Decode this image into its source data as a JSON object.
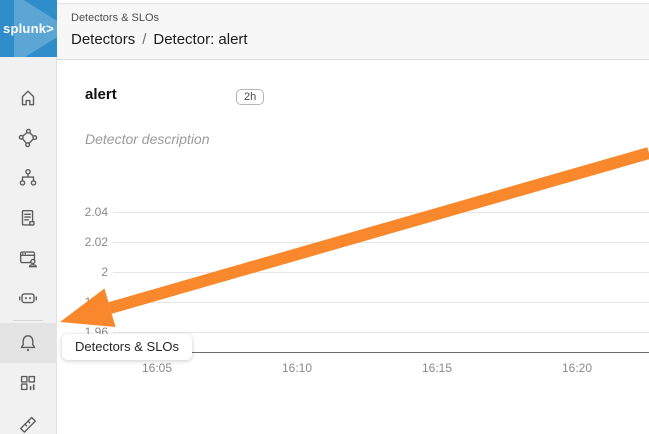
{
  "logo": {
    "text": "splunk>"
  },
  "header": {
    "eyebrow": "Detectors & SLOs",
    "breadcrumb": {
      "section": "Detectors",
      "separator": "/",
      "current": "Detector: alert"
    }
  },
  "sidebar": {
    "items": [
      {
        "name": "home"
      },
      {
        "name": "apm-service-map"
      },
      {
        "name": "infrastructure"
      },
      {
        "name": "log-observer"
      },
      {
        "name": "synthetics"
      },
      {
        "name": "automation"
      },
      {
        "name": "alerts-detectors",
        "active": true
      },
      {
        "name": "dashboards"
      },
      {
        "name": "metrics"
      }
    ],
    "tooltip": "Detectors & SLOs"
  },
  "detector": {
    "title": "alert",
    "time_range": "2h",
    "description": "Detector description"
  },
  "chart_data": {
    "type": "line",
    "title": "",
    "series": [],
    "y_ticks": [
      "2.04",
      "2.02",
      "2",
      "1.98",
      "1.96"
    ],
    "x_ticks": [
      "16:05",
      "16:10",
      "16:15",
      "16:20"
    ],
    "ylim": [
      1.95,
      2.05
    ],
    "grid": true
  },
  "colors": {
    "arrow": "#f8882b",
    "logo_blue": "#2f8dc9",
    "sidebar_active": "#e4e4e5"
  }
}
